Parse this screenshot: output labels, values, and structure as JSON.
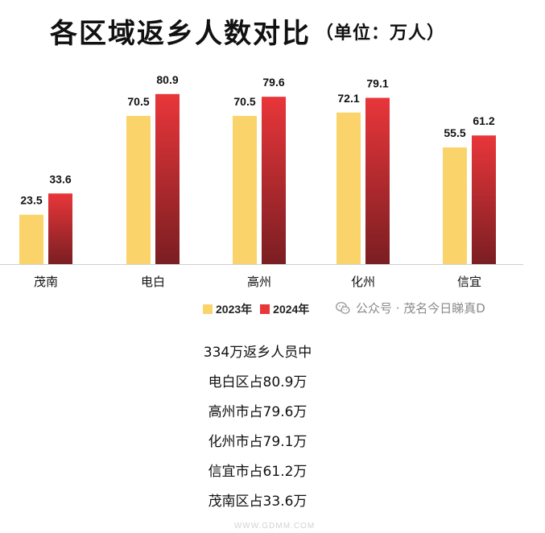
{
  "title": "各区域返乡人数对比",
  "unit": "（单位：万人）",
  "chart_data": {
    "type": "bar",
    "categories": [
      "茂南",
      "电白",
      "高州",
      "化州",
      "信宜"
    ],
    "series": [
      {
        "name": "2023年",
        "values": [
          23.5,
          70.5,
          70.5,
          72.1,
          55.5
        ],
        "color": "#FAD46A"
      },
      {
        "name": "2024年",
        "values": [
          33.6,
          80.9,
          79.6,
          79.1,
          61.2
        ],
        "color": "#E8363A",
        "color_bottom": "#7A1E22"
      }
    ],
    "ylim": [
      0,
      95
    ],
    "grid": false,
    "legend_position": "bottom"
  },
  "legend": [
    "2023年",
    "2024年"
  ],
  "watermark": "公众号 · 茂名今日睇真D",
  "summary": [
    "334万返乡人员中",
    "电白区占80.9万",
    "高州市占79.6万",
    "化州市占79.1万",
    "信宜市占61.2万",
    "茂南区占33.6万"
  ],
  "corner_logo_text": "WWW.GDMM.COM",
  "icons": {
    "watermark": "wechat-icon"
  }
}
